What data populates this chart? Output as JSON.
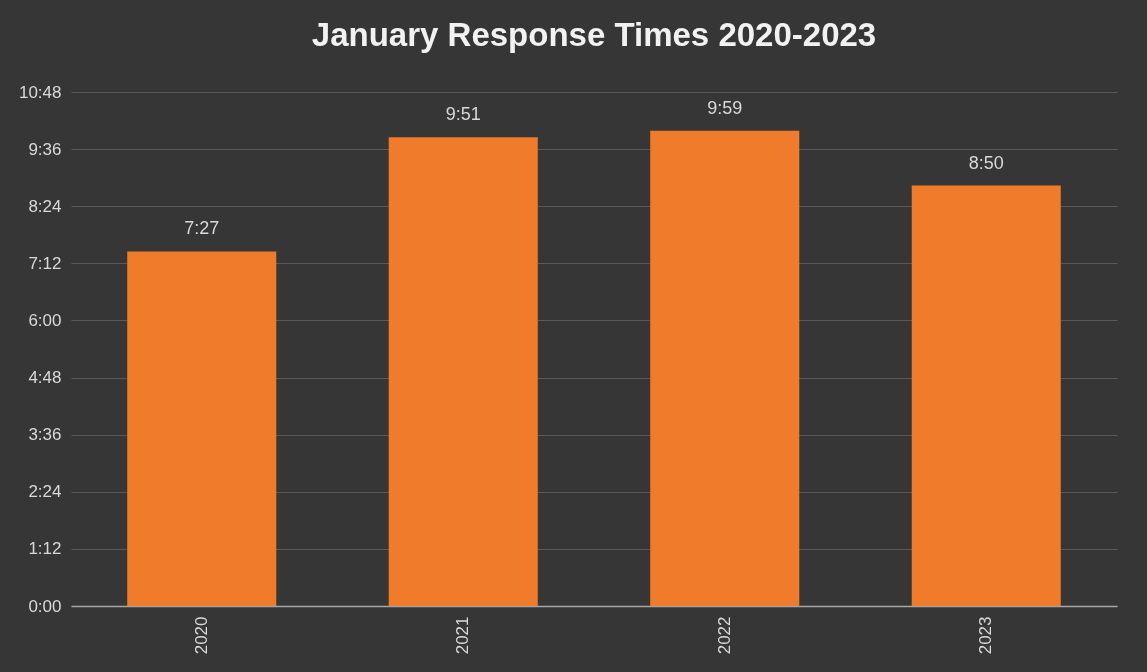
{
  "chart_data": {
    "type": "bar",
    "title": "January Response Times 2020-2023",
    "categories": [
      "2020",
      "2021",
      "2022",
      "2023"
    ],
    "values": [
      7.45,
      9.85,
      9.9833,
      8.8333
    ],
    "value_labels": [
      "7:27",
      "9:51",
      "9:59",
      "8:50"
    ],
    "color": "#f07b2a",
    "ylim": [
      0,
      10.8
    ],
    "yticks": [
      {
        "value": 0,
        "label": "0:00"
      },
      {
        "value": 1.2,
        "label": "1:12"
      },
      {
        "value": 2.4,
        "label": "2:24"
      },
      {
        "value": 3.6,
        "label": "3:36"
      },
      {
        "value": 4.8,
        "label": "4:48"
      },
      {
        "value": 6,
        "label": "6:00"
      },
      {
        "value": 7.2,
        "label": "7:12"
      },
      {
        "value": 8.4,
        "label": "8:24"
      },
      {
        "value": 9.6,
        "label": "9:36"
      },
      {
        "value": 10.8,
        "label": "10:48"
      }
    ],
    "grid": "y"
  }
}
